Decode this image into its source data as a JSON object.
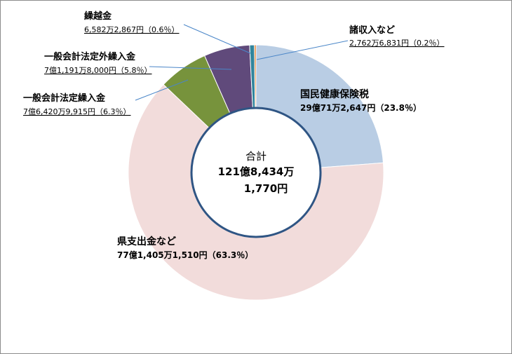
{
  "chart_data": {
    "type": "pie",
    "style": "donut",
    "currency_unit": "円",
    "total": {
      "label": "合計",
      "line1": "121億8,434万",
      "line2": "1,770円"
    },
    "slices": [
      {
        "name": "国民健康保険税",
        "amount_text": "29億71万2,647円（23.8％）",
        "percent": 23.8,
        "color": "#b9cde4"
      },
      {
        "name": "県支出金など",
        "amount_text": "77億1,405万1,510円（63.3％）",
        "percent": 63.3,
        "color": "#f2dcdb"
      },
      {
        "name": "一般会計法定繰入金",
        "amount_text": "7億6,420万9,915円（6.3％）",
        "percent": 6.3,
        "color": "#77933c"
      },
      {
        "name": "一般会計法定外繰入金",
        "amount_text": "7億1,191万8,000円（5.8％）",
        "percent": 5.8,
        "color": "#604a7b"
      },
      {
        "name": "繰越金",
        "amount_text": "6,582万2,867円（0.6％）",
        "percent": 0.6,
        "color": "#31859c"
      },
      {
        "name": "諸収入など",
        "amount_text": "2,762万6,831円（0.2％）",
        "percent": 0.2,
        "color": "#e46c0a"
      }
    ]
  }
}
